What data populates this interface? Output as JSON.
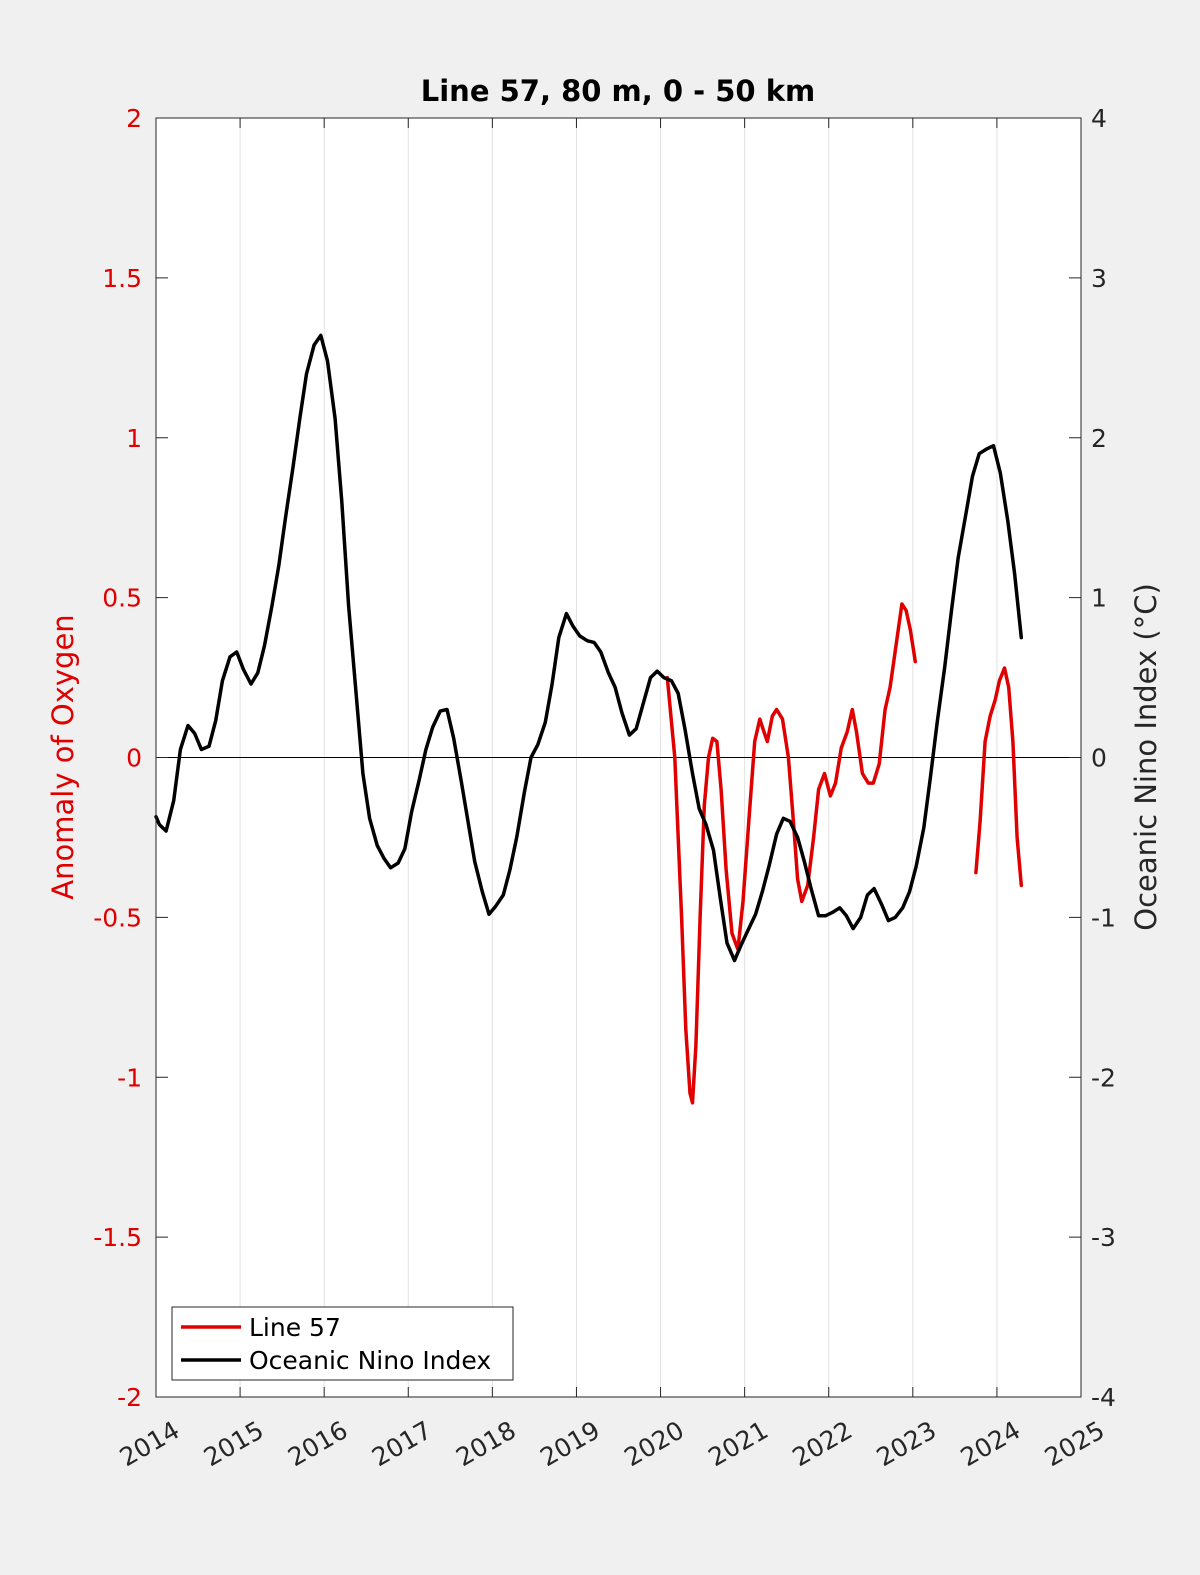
{
  "chart_data": {
    "type": "line",
    "title": "Line 57, 80 m, 0 - 50 km",
    "xlabel": "",
    "ylabel_left": "Anomaly of Oxygen",
    "ylabel_right": "Oceanic Nino Index (°C)",
    "xlim": [
      2014,
      2025
    ],
    "ylim_left": [
      -2,
      2
    ],
    "ylim_right": [
      -4,
      4
    ],
    "xticks": [
      "2014",
      "2015",
      "2016",
      "2017",
      "2018",
      "2019",
      "2020",
      "2021",
      "2022",
      "2023",
      "2024",
      "2025"
    ],
    "yticks_left": [
      "-2",
      "-1.5",
      "-1",
      "-0.5",
      "0",
      "0.5",
      "1",
      "1.5",
      "2"
    ],
    "yticks_right": [
      "-4",
      "-3",
      "-2",
      "-1",
      "0",
      "1",
      "2",
      "3",
      "4"
    ],
    "grid": "vertical",
    "legend_position": "bottom-left",
    "colors": {
      "left_axis": "#e00000",
      "line57": "#e00000",
      "oni": "#000000",
      "zero_line": "#000000",
      "grid": "#e2e2e2"
    },
    "series": [
      {
        "name": "Line 57",
        "axis": "left",
        "color": "#e00000",
        "segments": [
          [
            [
              2020.08,
              0.25
            ],
            [
              2020.17,
              0.0
            ],
            [
              2020.25,
              -0.5
            ],
            [
              2020.3,
              -0.85
            ],
            [
              2020.35,
              -1.05
            ],
            [
              2020.38,
              -1.08
            ],
            [
              2020.42,
              -0.9
            ],
            [
              2020.47,
              -0.5
            ],
            [
              2020.52,
              -0.15
            ],
            [
              2020.57,
              0.0
            ],
            [
              2020.62,
              0.06
            ],
            [
              2020.67,
              0.05
            ],
            [
              2020.72,
              -0.1
            ],
            [
              2020.78,
              -0.35
            ],
            [
              2020.85,
              -0.55
            ],
            [
              2020.92,
              -0.6
            ],
            [
              2020.98,
              -0.45
            ],
            [
              2021.05,
              -0.2
            ],
            [
              2021.12,
              0.05
            ],
            [
              2021.18,
              0.12
            ],
            [
              2021.23,
              0.08
            ],
            [
              2021.27,
              0.05
            ],
            [
              2021.33,
              0.13
            ],
            [
              2021.38,
              0.15
            ],
            [
              2021.45,
              0.12
            ],
            [
              2021.52,
              0.0
            ],
            [
              2021.58,
              -0.2
            ],
            [
              2021.63,
              -0.38
            ],
            [
              2021.68,
              -0.45
            ],
            [
              2021.75,
              -0.4
            ],
            [
              2021.82,
              -0.25
            ],
            [
              2021.88,
              -0.1
            ],
            [
              2021.95,
              -0.05
            ],
            [
              2022.02,
              -0.12
            ],
            [
              2022.08,
              -0.08
            ],
            [
              2022.15,
              0.03
            ],
            [
              2022.22,
              0.08
            ],
            [
              2022.28,
              0.15
            ],
            [
              2022.33,
              0.08
            ],
            [
              2022.4,
              -0.05
            ],
            [
              2022.47,
              -0.08
            ],
            [
              2022.53,
              -0.08
            ],
            [
              2022.6,
              -0.02
            ],
            [
              2022.67,
              0.15
            ],
            [
              2022.73,
              0.22
            ],
            [
              2022.8,
              0.35
            ],
            [
              2022.87,
              0.48
            ],
            [
              2022.92,
              0.46
            ],
            [
              2022.97,
              0.4
            ],
            [
              2023.03,
              0.3
            ]
          ],
          [
            [
              2023.75,
              -0.36
            ],
            [
              2023.8,
              -0.2
            ],
            [
              2023.86,
              0.05
            ],
            [
              2023.92,
              0.13
            ],
            [
              2023.98,
              0.18
            ],
            [
              2024.03,
              0.24
            ],
            [
              2024.09,
              0.28
            ],
            [
              2024.14,
              0.22
            ],
            [
              2024.19,
              0.05
            ],
            [
              2024.24,
              -0.25
            ],
            [
              2024.29,
              -0.4
            ]
          ]
        ]
      },
      {
        "name": "Oceanic Nino Index",
        "axis": "right",
        "color": "#000000",
        "segments": [
          [
            [
              2014.0,
              -0.37
            ],
            [
              2014.04,
              -0.42
            ],
            [
              2014.12,
              -0.46
            ],
            [
              2014.21,
              -0.27
            ],
            [
              2014.29,
              0.05
            ],
            [
              2014.38,
              0.2
            ],
            [
              2014.46,
              0.15
            ],
            [
              2014.54,
              0.05
            ],
            [
              2014.63,
              0.07
            ],
            [
              2014.71,
              0.23
            ],
            [
              2014.79,
              0.48
            ],
            [
              2014.88,
              0.63
            ],
            [
              2014.96,
              0.66
            ],
            [
              2015.04,
              0.55
            ],
            [
              2015.13,
              0.46
            ],
            [
              2015.21,
              0.53
            ],
            [
              2015.29,
              0.7
            ],
            [
              2015.38,
              0.95
            ],
            [
              2015.46,
              1.2
            ],
            [
              2015.54,
              1.5
            ],
            [
              2015.63,
              1.82
            ],
            [
              2015.71,
              2.12
            ],
            [
              2015.79,
              2.4
            ],
            [
              2015.88,
              2.58
            ],
            [
              2015.96,
              2.64
            ],
            [
              2016.04,
              2.48
            ],
            [
              2016.13,
              2.12
            ],
            [
              2016.21,
              1.6
            ],
            [
              2016.29,
              0.95
            ],
            [
              2016.38,
              0.4
            ],
            [
              2016.46,
              -0.1
            ],
            [
              2016.54,
              -0.38
            ],
            [
              2016.63,
              -0.55
            ],
            [
              2016.71,
              -0.63
            ],
            [
              2016.79,
              -0.69
            ],
            [
              2016.88,
              -0.66
            ],
            [
              2016.96,
              -0.57
            ],
            [
              2017.04,
              -0.34
            ],
            [
              2017.13,
              -0.14
            ],
            [
              2017.21,
              0.05
            ],
            [
              2017.29,
              0.19
            ],
            [
              2017.38,
              0.29
            ],
            [
              2017.46,
              0.3
            ],
            [
              2017.54,
              0.12
            ],
            [
              2017.63,
              -0.15
            ],
            [
              2017.71,
              -0.4
            ],
            [
              2017.79,
              -0.65
            ],
            [
              2017.88,
              -0.84
            ],
            [
              2017.96,
              -0.98
            ],
            [
              2018.04,
              -0.93
            ],
            [
              2018.13,
              -0.86
            ],
            [
              2018.21,
              -0.7
            ],
            [
              2018.29,
              -0.5
            ],
            [
              2018.38,
              -0.22
            ],
            [
              2018.46,
              0.0
            ],
            [
              2018.54,
              0.08
            ],
            [
              2018.63,
              0.22
            ],
            [
              2018.71,
              0.46
            ],
            [
              2018.79,
              0.75
            ],
            [
              2018.88,
              0.9
            ],
            [
              2018.96,
              0.82
            ],
            [
              2019.04,
              0.76
            ],
            [
              2019.13,
              0.73
            ],
            [
              2019.21,
              0.72
            ],
            [
              2019.29,
              0.66
            ],
            [
              2019.38,
              0.53
            ],
            [
              2019.46,
              0.44
            ],
            [
              2019.54,
              0.28
            ],
            [
              2019.63,
              0.14
            ],
            [
              2019.71,
              0.18
            ],
            [
              2019.79,
              0.33
            ],
            [
              2019.88,
              0.5
            ],
            [
              2019.96,
              0.54
            ],
            [
              2020.04,
              0.5
            ],
            [
              2020.13,
              0.48
            ],
            [
              2020.21,
              0.4
            ],
            [
              2020.29,
              0.18
            ],
            [
              2020.38,
              -0.1
            ],
            [
              2020.46,
              -0.32
            ],
            [
              2020.54,
              -0.42
            ],
            [
              2020.63,
              -0.58
            ],
            [
              2020.71,
              -0.88
            ],
            [
              2020.79,
              -1.16
            ],
            [
              2020.88,
              -1.27
            ],
            [
              2020.96,
              -1.17
            ],
            [
              2021.04,
              -1.08
            ],
            [
              2021.13,
              -0.98
            ],
            [
              2021.21,
              -0.84
            ],
            [
              2021.29,
              -0.68
            ],
            [
              2021.38,
              -0.48
            ],
            [
              2021.46,
              -0.38
            ],
            [
              2021.54,
              -0.4
            ],
            [
              2021.63,
              -0.5
            ],
            [
              2021.71,
              -0.65
            ],
            [
              2021.79,
              -0.82
            ],
            [
              2021.88,
              -0.99
            ],
            [
              2021.96,
              -0.99
            ],
            [
              2022.04,
              -0.97
            ],
            [
              2022.13,
              -0.94
            ],
            [
              2022.21,
              -0.99
            ],
            [
              2022.29,
              -1.07
            ],
            [
              2022.38,
              -1.0
            ],
            [
              2022.46,
              -0.86
            ],
            [
              2022.54,
              -0.82
            ],
            [
              2022.63,
              -0.92
            ],
            [
              2022.71,
              -1.02
            ],
            [
              2022.79,
              -1.0
            ],
            [
              2022.88,
              -0.94
            ],
            [
              2022.96,
              -0.84
            ],
            [
              2023.04,
              -0.68
            ],
            [
              2023.13,
              -0.44
            ],
            [
              2023.21,
              -0.12
            ],
            [
              2023.29,
              0.22
            ],
            [
              2023.38,
              0.57
            ],
            [
              2023.46,
              0.92
            ],
            [
              2023.54,
              1.25
            ],
            [
              2023.63,
              1.52
            ],
            [
              2023.71,
              1.76
            ],
            [
              2023.79,
              1.9
            ],
            [
              2023.88,
              1.93
            ],
            [
              2023.96,
              1.95
            ],
            [
              2024.04,
              1.78
            ],
            [
              2024.13,
              1.48
            ],
            [
              2024.21,
              1.15
            ],
            [
              2024.29,
              0.75
            ]
          ]
        ]
      }
    ]
  }
}
